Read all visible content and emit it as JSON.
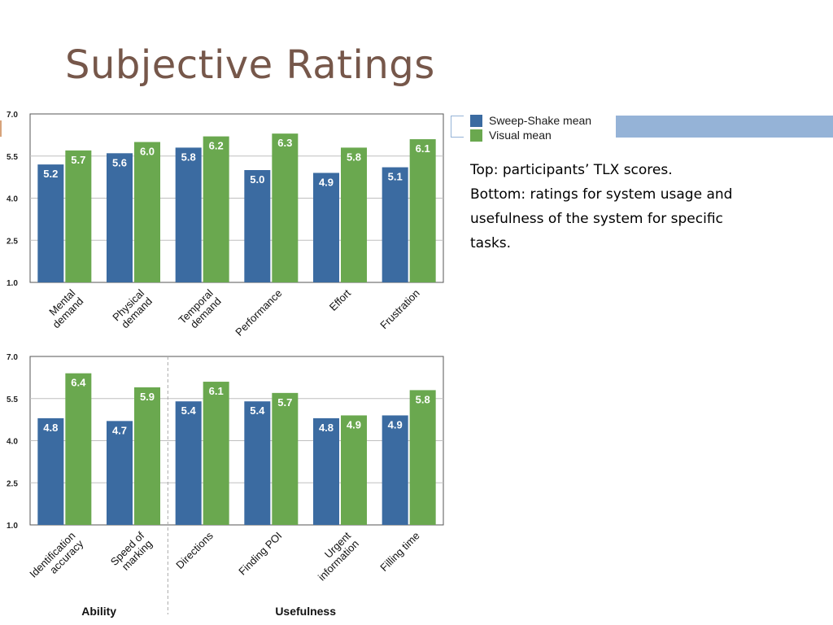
{
  "slide": {
    "title": "Subjective Ratings",
    "caption_lines": [
      "Top: participants’ TLX scores.",
      "Bottom: ratings for system usage and",
      "usefulness of the system for specific",
      "tasks."
    ]
  },
  "legend": [
    {
      "name": "Sweep-Shake mean",
      "color": "#3b6ba1"
    },
    {
      "name": "Visual mean",
      "color": "#6aa84f"
    }
  ],
  "chart_data": [
    {
      "type": "bar",
      "categories": [
        [
          "Mental",
          "demand"
        ],
        [
          "Physical",
          "demand"
        ],
        [
          "Temporal",
          "demand"
        ],
        [
          "Performance"
        ],
        [
          "Effort"
        ],
        [
          "Frustration"
        ]
      ],
      "series": [
        {
          "name": "Sweep-Shake mean",
          "values": [
            5.2,
            5.6,
            5.8,
            5.0,
            4.9,
            5.1
          ]
        },
        {
          "name": "Visual mean",
          "values": [
            5.7,
            6.0,
            6.2,
            6.3,
            5.8,
            6.1
          ]
        }
      ],
      "yticks": [
        "1.0",
        "2.5",
        "4.0",
        "5.5",
        "7.0"
      ],
      "ylim": [
        1.0,
        7.0
      ],
      "grid": true,
      "groups": []
    },
    {
      "type": "bar",
      "categories": [
        [
          "Identification",
          "accuracy"
        ],
        [
          "Speed of",
          "marking"
        ],
        [
          "Directions"
        ],
        [
          "Finding POI"
        ],
        [
          "Urgent",
          "information"
        ],
        [
          "Filling time"
        ]
      ],
      "series": [
        {
          "name": "Sweep-Shake mean",
          "values": [
            4.8,
            4.7,
            5.4,
            5.4,
            4.8,
            4.9
          ]
        },
        {
          "name": "Visual mean",
          "values": [
            6.4,
            5.9,
            6.1,
            5.7,
            4.9,
            5.8
          ]
        }
      ],
      "yticks": [
        "1.0",
        "2.5",
        "4.0",
        "5.5",
        "7.0"
      ],
      "ylim": [
        1.0,
        7.0
      ],
      "grid": true,
      "groups": [
        {
          "label": "Ability",
          "categories": [
            0,
            1
          ]
        },
        {
          "label": "Usefulness",
          "categories": [
            2,
            3,
            4,
            5
          ]
        }
      ]
    }
  ]
}
